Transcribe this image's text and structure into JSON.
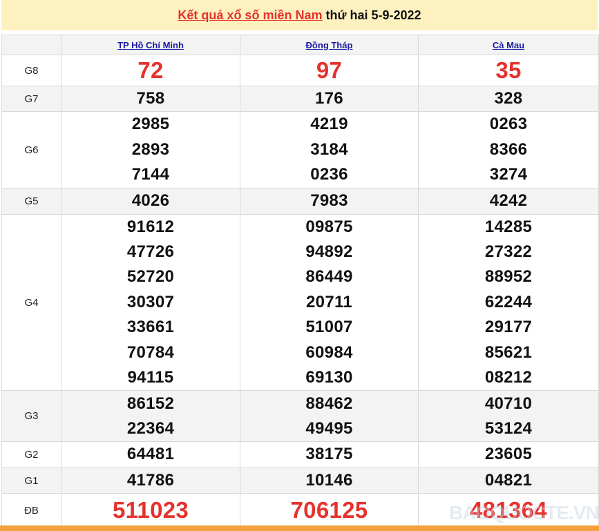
{
  "title": {
    "link": "Kết quả xổ số miền Nam",
    "rest": " thứ hai 5-9-2022"
  },
  "provinces": [
    "TP Hồ Chí Minh",
    "Đồng Tháp",
    "Cà Mau"
  ],
  "prizes": [
    {
      "label": "G8",
      "values": [
        [
          "72"
        ],
        [
          "97"
        ],
        [
          "35"
        ]
      ]
    },
    {
      "label": "G7",
      "values": [
        [
          "758"
        ],
        [
          "176"
        ],
        [
          "328"
        ]
      ]
    },
    {
      "label": "G6",
      "values": [
        [
          "2985",
          "2893",
          "7144"
        ],
        [
          "4219",
          "3184",
          "0236"
        ],
        [
          "0263",
          "8366",
          "3274"
        ]
      ]
    },
    {
      "label": "G5",
      "values": [
        [
          "4026"
        ],
        [
          "7983"
        ],
        [
          "4242"
        ]
      ]
    },
    {
      "label": "G4",
      "values": [
        [
          "91612",
          "47726",
          "52720",
          "30307",
          "33661",
          "70784",
          "94115"
        ],
        [
          "09875",
          "94892",
          "86449",
          "20711",
          "51007",
          "60984",
          "69130"
        ],
        [
          "14285",
          "27322",
          "88952",
          "62244",
          "29177",
          "85621",
          "08212"
        ]
      ]
    },
    {
      "label": "G3",
      "values": [
        [
          "86152",
          "22364"
        ],
        [
          "88462",
          "49495"
        ],
        [
          "40710",
          "53124"
        ]
      ]
    },
    {
      "label": "G2",
      "values": [
        [
          "64481"
        ],
        [
          "38175"
        ],
        [
          "23605"
        ]
      ]
    },
    {
      "label": "G1",
      "values": [
        [
          "41786"
        ],
        [
          "10146"
        ],
        [
          "04821"
        ]
      ]
    },
    {
      "label": "ĐB",
      "values": [
        [
          "511023"
        ],
        [
          "706125"
        ],
        [
          "481364"
        ]
      ]
    }
  ],
  "watermark": "BAOQUOCTE.VN",
  "colors": {
    "accent": "#e5322d",
    "title_bg": "#fdf1bf",
    "link": "#1a1aa6",
    "bottom_bar": "#f4a03c"
  }
}
